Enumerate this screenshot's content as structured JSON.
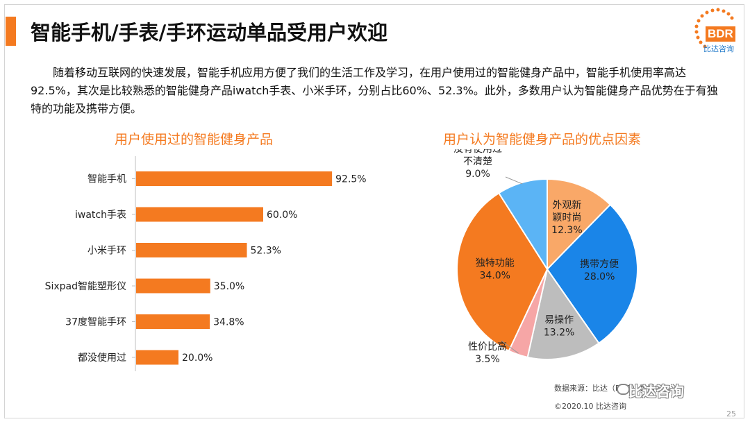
{
  "title": "智能手机/手表/手环运动单品受用户欢迎",
  "intro": "随着移动互联网的快速发展，智能手机应用方便了我们的生活工作及学习，在用户使用过的智能健身产品中，智能手机使用率高达92.5%，其次是比较熟悉的智能健身产品iwatch手表、小米手环，分别占比60%、52.3%。此外，多数用户认为智能健身产品优势在于有独特的功能及携带方便。",
  "logo": {
    "text": "BDR",
    "sub": "比达咨询"
  },
  "source": "数据来源：比达（BDR）数据中心",
  "copyright": "©2020.10 比达咨询",
  "watermark": "比达咨询",
  "page_number": "25",
  "colors": {
    "accent": "#f47a20",
    "blue": "#1a85e8",
    "light_blue": "#5bb4f5",
    "light_orange": "#f9a868",
    "gray": "#bdbdbd",
    "pink": "#f6a6a6"
  },
  "chart_data": [
    {
      "type": "bar",
      "orientation": "horizontal",
      "title": "用户使用过的智能健身产品",
      "categories": [
        "智能手机",
        "iwatch手表",
        "小米手环",
        "Sixpad智能塑形仪",
        "37度智能手环",
        "都没使用过"
      ],
      "values": [
        92.5,
        60.0,
        52.3,
        35.0,
        34.8,
        20.0
      ],
      "value_labels": [
        "92.5%",
        "60.0%",
        "52.3%",
        "35.0%",
        "34.8%",
        "20.0%"
      ],
      "unit": "%",
      "xlim": [
        0,
        100
      ],
      "color": "#f47a20"
    },
    {
      "type": "pie",
      "title": "用户认为智能健身产品的优点因素",
      "slices": [
        {
          "label": "外观新颖时尚",
          "value": 12.3,
          "value_label": "12.3%",
          "color": "#f9a868"
        },
        {
          "label": "携带方便",
          "value": 28.0,
          "value_label": "28.0%",
          "color": "#1a85e8"
        },
        {
          "label": "易操作",
          "value": 13.2,
          "value_label": "13.2%",
          "color": "#bdbdbd"
        },
        {
          "label": "性价比高",
          "value": 3.5,
          "value_label": "3.5%",
          "color": "#f6a6a6"
        },
        {
          "label": "独特功能",
          "value": 34.0,
          "value_label": "34.0%",
          "color": "#f47a20"
        },
        {
          "label": "没有使用过不清楚",
          "value": 9.0,
          "value_label": "9.0%",
          "color": "#5bb4f5"
        }
      ]
    }
  ]
}
